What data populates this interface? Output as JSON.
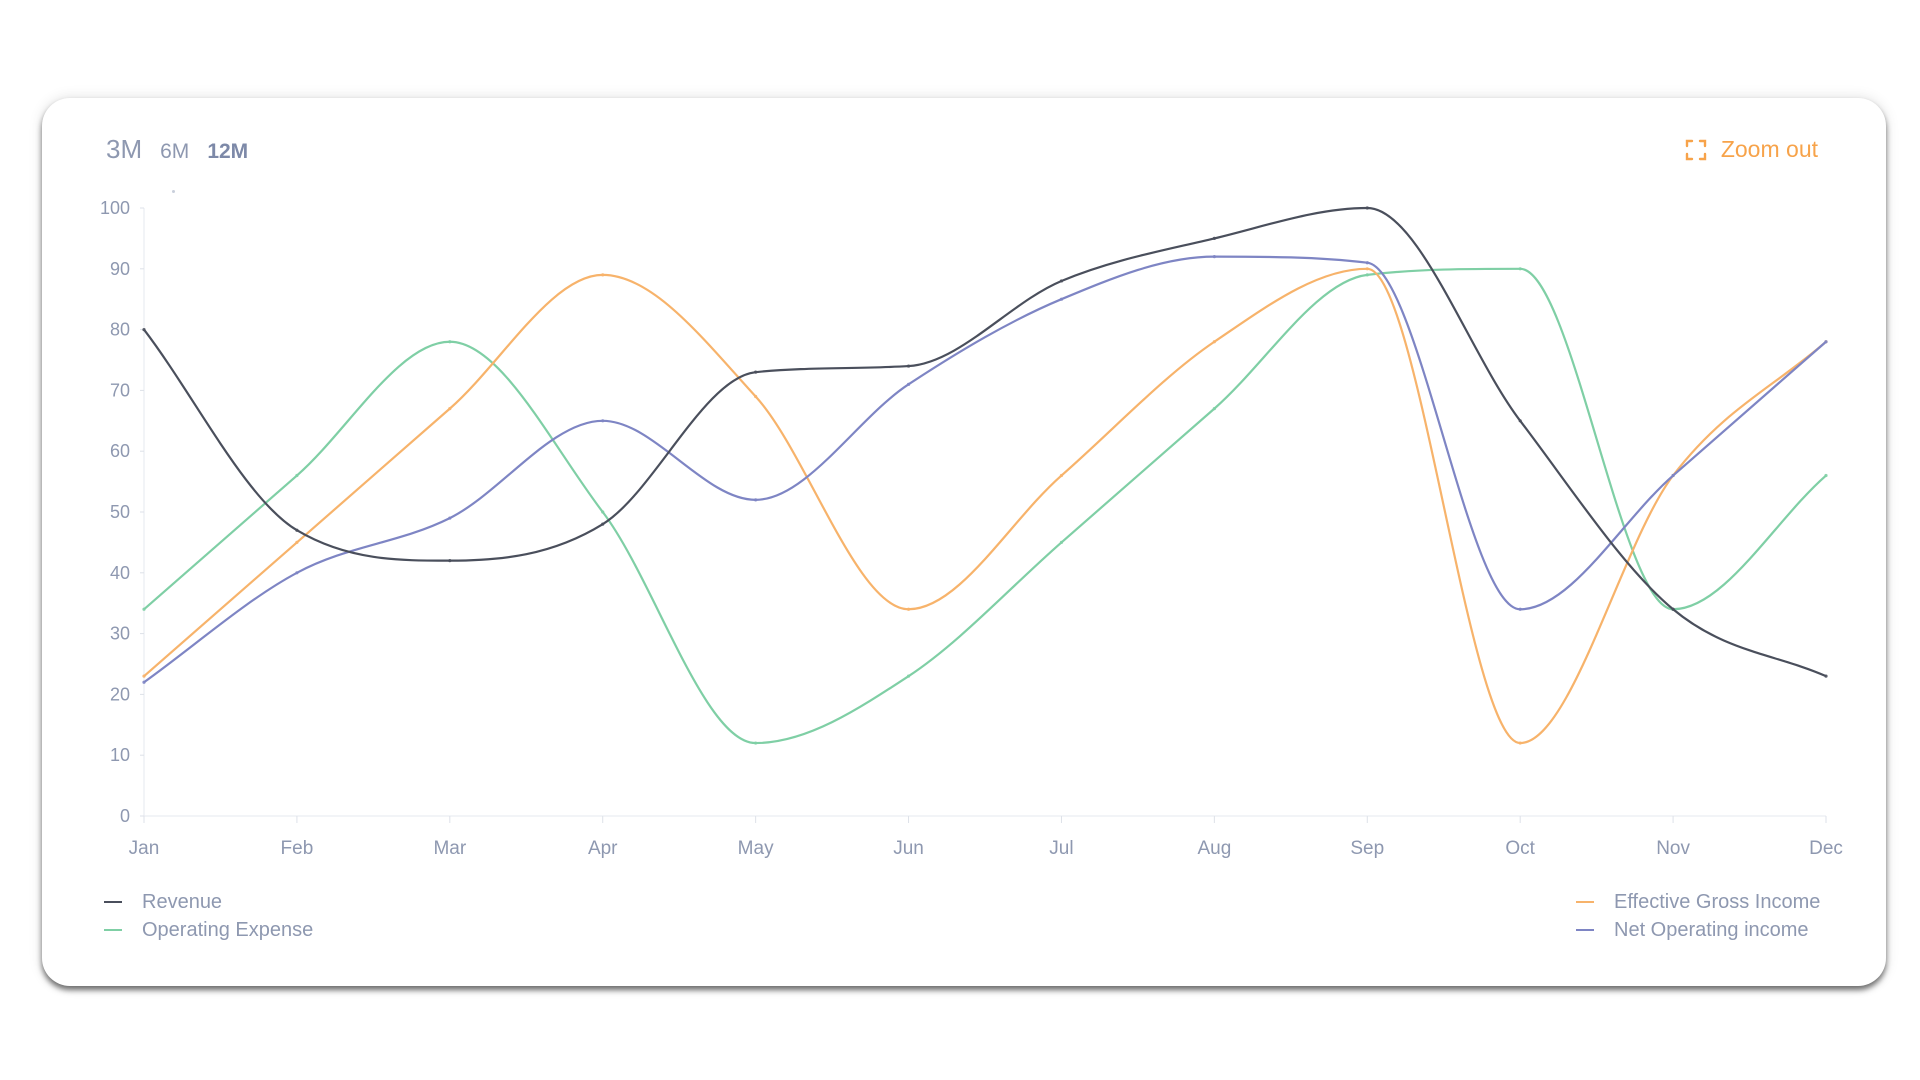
{
  "range_tabs": {
    "three_months": "3M",
    "six_months": "6M",
    "twelve_months": "12M",
    "selected": "12M"
  },
  "zoom": {
    "label": "Zoom out",
    "icon": "expand-icon",
    "color": "#f7a34a"
  },
  "chart_data": {
    "type": "line",
    "categories": [
      "Jan",
      "Feb",
      "Mar",
      "Apr",
      "May",
      "Jun",
      "Jul",
      "Aug",
      "Sep",
      "Oct",
      "Nov",
      "Dec"
    ],
    "ylim": [
      0,
      100
    ],
    "yticks": [
      0,
      10,
      20,
      30,
      40,
      50,
      60,
      70,
      80,
      90,
      100
    ],
    "grid": false,
    "legend_placement": "bottom",
    "series": [
      {
        "name": "Revenue",
        "color": "#4a4f5c",
        "values": [
          80,
          47,
          42,
          48,
          73,
          74,
          88,
          95,
          100,
          65,
          34,
          23
        ]
      },
      {
        "name": "Operating Expense",
        "color": "#7fcfa5",
        "values": [
          34,
          56,
          78,
          50,
          12,
          23,
          45,
          67,
          89,
          90,
          34,
          56
        ]
      },
      {
        "name": "Effective Gross Income",
        "color": "#f7b36b",
        "values": [
          23,
          45,
          67,
          89,
          69,
          34,
          56,
          78,
          90,
          12,
          56,
          78
        ]
      },
      {
        "name": "Net Operating income",
        "color": "#7e85c4",
        "values": [
          22,
          40,
          49,
          65,
          52,
          71,
          85,
          92,
          91,
          34,
          56,
          78
        ]
      }
    ]
  }
}
